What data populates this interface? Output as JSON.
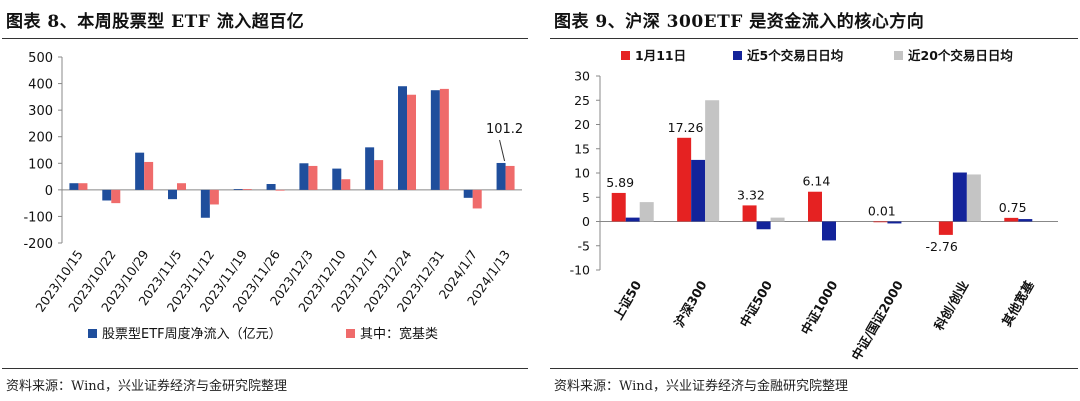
{
  "left": {
    "title": "图表 8、本周股票型 ETF 流入超百亿",
    "source": "资料来源：Wind，兴业证券经济与金研究院整理",
    "chart_data": {
      "type": "bar",
      "categories": [
        "2023/10/15",
        "2023/10/22",
        "2023/10/29",
        "2023/11/5",
        "2023/11/12",
        "2023/11/19",
        "2023/11/26",
        "2023/12/3",
        "2023/12/10",
        "2023/12/17",
        "2023/12/24",
        "2023/12/31",
        "2024/1/7",
        "2024/1/13"
      ],
      "ylim": [
        -200,
        500
      ],
      "yticks": [
        -200,
        -100,
        0,
        100,
        200,
        300,
        400,
        500
      ],
      "series": [
        {
          "name": "股票型ETF周度净流入（亿元）",
          "color": "#1f4e9c",
          "values": [
            25,
            -40,
            140,
            -35,
            -105,
            3,
            22,
            100,
            80,
            160,
            390,
            375,
            -30,
            101.2
          ]
        },
        {
          "name": "其中：宽基类",
          "color": "#ef6b6b",
          "values": [
            25,
            -50,
            105,
            25,
            -55,
            3,
            -3,
            90,
            40,
            112,
            358,
            380,
            -70,
            90
          ]
        }
      ],
      "annotations": [
        {
          "text": "101.2",
          "category": "2024/1/13"
        }
      ]
    }
  },
  "right": {
    "title": "图表 9、沪深 300ETF 是资金流入的核心方向",
    "source": "资料来源：Wind，兴业证券经济与金融研究院整理",
    "chart_data": {
      "type": "bar",
      "categories": [
        "上证50",
        "沪深300",
        "中证500",
        "中证1000",
        "中证/国证2000",
        "科创/创业",
        "其他宽基"
      ],
      "ylim": [
        -10,
        30
      ],
      "yticks": [
        -10,
        -5,
        0,
        5,
        10,
        15,
        20,
        25,
        30
      ],
      "legend_position": "top",
      "series": [
        {
          "name": "1月11日",
          "color": "#e52222",
          "values": [
            5.89,
            17.26,
            3.32,
            6.14,
            0.01,
            -2.76,
            0.75
          ]
        },
        {
          "name": "近5个交易日日均",
          "color": "#13239a",
          "values": [
            0.8,
            12.7,
            -1.6,
            -3.9,
            -0.4,
            10.1,
            0.5
          ]
        },
        {
          "name": "近20个交易日日均",
          "color": "#c4c4c4",
          "values": [
            4.0,
            25.0,
            0.8,
            0.0,
            0.0,
            9.7,
            0.0
          ]
        }
      ],
      "data_labels": [
        "5.89",
        "17.26",
        "3.32",
        "6.14",
        "0.01",
        "-2.76",
        "0.75"
      ]
    }
  }
}
